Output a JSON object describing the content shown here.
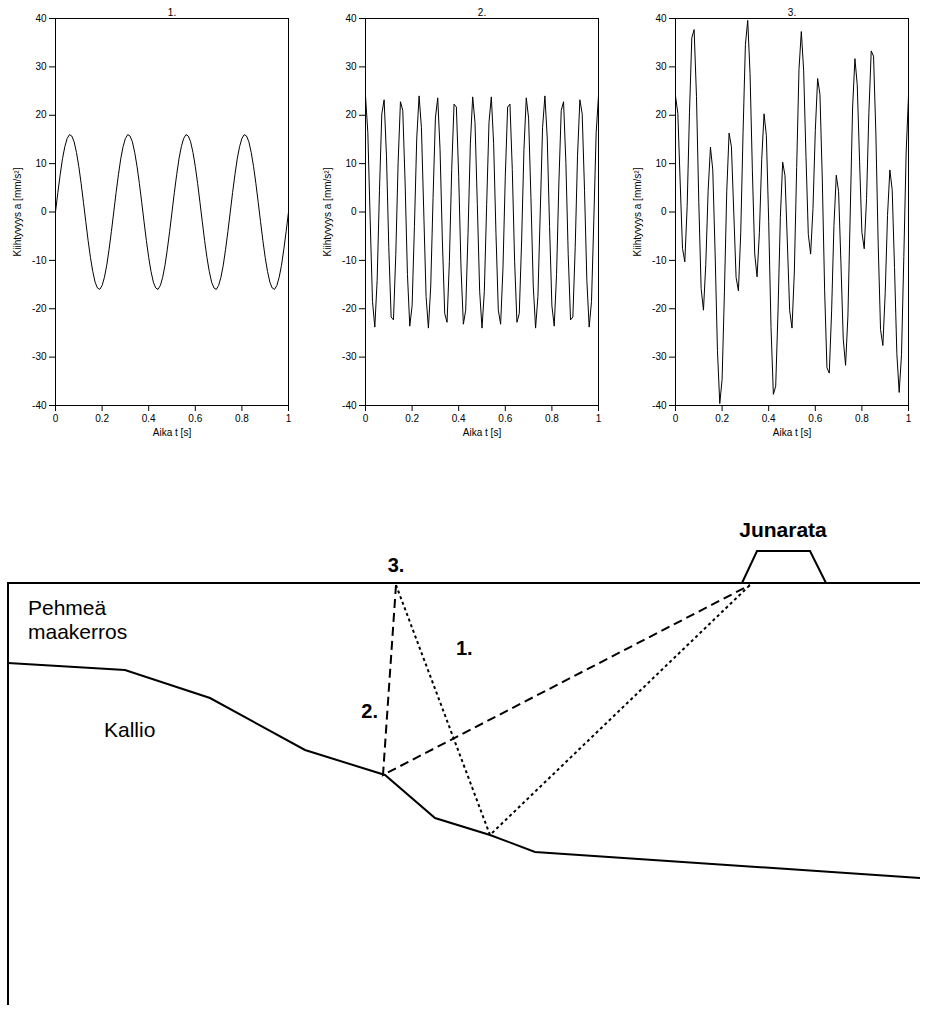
{
  "chart_data": [
    {
      "type": "line",
      "title": "1.",
      "x_label": "Aika t [s]",
      "y_label": "Kiihtyvyys a [mm/s²]",
      "color": "#000000",
      "grid": false,
      "xlim": [
        0,
        1
      ],
      "xticks": [
        0,
        0.2,
        0.4,
        0.6,
        0.8,
        1
      ],
      "ylim": [
        -40,
        40
      ],
      "yticks": [
        -40,
        -30,
        -20,
        -10,
        0,
        10,
        20,
        30,
        40
      ],
      "x": [
        0,
        0.01,
        0.02,
        0.03,
        0.04,
        0.05,
        0.06,
        0.07,
        0.08,
        0.09,
        0.1,
        0.11,
        0.12,
        0.13,
        0.14,
        0.15,
        0.16,
        0.17,
        0.18,
        0.19,
        0.2,
        0.21,
        0.22,
        0.23,
        0.24,
        0.25,
        0.26,
        0.27,
        0.28,
        0.29,
        0.3,
        0.31,
        0.32,
        0.33,
        0.34,
        0.35,
        0.36,
        0.37,
        0.38,
        0.39,
        0.4,
        0.41,
        0.42,
        0.43,
        0.44,
        0.45,
        0.46,
        0.47,
        0.48,
        0.49,
        0.5,
        0.51,
        0.52,
        0.53,
        0.54,
        0.55,
        0.56,
        0.57,
        0.58,
        0.59,
        0.6,
        0.61,
        0.62,
        0.63,
        0.64,
        0.65,
        0.66,
        0.67,
        0.68,
        0.69,
        0.7,
        0.71,
        0.72,
        0.73,
        0.74,
        0.75,
        0.76,
        0.77,
        0.78,
        0.79,
        0.8,
        0.81,
        0.82,
        0.83,
        0.84,
        0.85,
        0.86,
        0.87,
        0.88,
        0.89,
        0.9,
        0.91,
        0.92,
        0.93,
        0.94,
        0.95,
        0.96,
        0.97,
        0.98,
        0.99,
        1
      ],
      "values": [
        0,
        4.0,
        7.7,
        11.0,
        13.5,
        15.2,
        16.0,
        15.7,
        14.5,
        12.3,
        9.4,
        5.9,
        2.0,
        -2.0,
        -5.9,
        -9.4,
        -12.3,
        -14.5,
        -15.7,
        -16.0,
        -15.2,
        -13.5,
        -11.0,
        -7.7,
        -4.0,
        0,
        4.0,
        7.7,
        11.0,
        13.5,
        15.2,
        16.0,
        15.7,
        14.5,
        12.3,
        9.4,
        5.9,
        2.0,
        -2.0,
        -5.9,
        -9.4,
        -12.3,
        -14.5,
        -15.7,
        -16.0,
        -15.2,
        -13.5,
        -11.0,
        -7.7,
        -4.0,
        0,
        4.0,
        7.7,
        11.0,
        13.5,
        15.2,
        16.0,
        15.7,
        14.5,
        12.3,
        9.4,
        5.9,
        2.0,
        -2.0,
        -5.9,
        -9.4,
        -12.3,
        -14.5,
        -15.7,
        -16.0,
        -15.2,
        -13.5,
        -11.0,
        -7.7,
        -4.0,
        0,
        4.0,
        7.7,
        11.0,
        13.5,
        15.2,
        16.0,
        15.7,
        14.5,
        12.3,
        9.4,
        5.9,
        2.0,
        -2.0,
        -5.9,
        -9.4,
        -12.3,
        -14.5,
        -15.7,
        -16.0,
        -15.2,
        -13.5,
        -11.0,
        -7.7,
        -4.0,
        0
      ]
    },
    {
      "type": "line",
      "title": "2.",
      "x_label": "Aika t [s]",
      "y_label": "Kiihtyvyys a [mm/s²]",
      "color": "#000000",
      "grid": false,
      "xlim": [
        0,
        1
      ],
      "xticks": [
        0,
        0.2,
        0.4,
        0.6,
        0.8,
        1
      ],
      "ylim": [
        -40,
        40
      ],
      "yticks": [
        -40,
        -30,
        -20,
        -10,
        0,
        10,
        20,
        30,
        40
      ],
      "x": [
        0,
        0.01,
        0.02,
        0.03,
        0.04,
        0.05,
        0.06,
        0.07,
        0.08,
        0.09,
        0.1,
        0.11,
        0.12,
        0.13,
        0.14,
        0.15,
        0.16,
        0.17,
        0.18,
        0.19,
        0.2,
        0.21,
        0.22,
        0.23,
        0.24,
        0.25,
        0.26,
        0.27,
        0.28,
        0.29,
        0.3,
        0.31,
        0.32,
        0.33,
        0.34,
        0.35,
        0.36,
        0.37,
        0.38,
        0.39,
        0.4,
        0.41,
        0.42,
        0.43,
        0.44,
        0.45,
        0.46,
        0.47,
        0.48,
        0.49,
        0.5,
        0.51,
        0.52,
        0.53,
        0.54,
        0.55,
        0.56,
        0.57,
        0.58,
        0.59,
        0.6,
        0.61,
        0.62,
        0.63,
        0.64,
        0.65,
        0.66,
        0.67,
        0.68,
        0.69,
        0.7,
        0.71,
        0.72,
        0.73,
        0.74,
        0.75,
        0.76,
        0.77,
        0.78,
        0.79,
        0.8,
        0.81,
        0.82,
        0.83,
        0.84,
        0.85,
        0.86,
        0.87,
        0.88,
        0.89,
        0.9,
        0.91,
        0.92,
        0.93,
        0.94,
        0.95,
        0.96,
        0.97,
        0.98,
        0.99,
        1
      ],
      "values": [
        24.0,
        16.4,
        -1.5,
        -18.5,
        -23.8,
        -14.1,
        4.5,
        20.3,
        23.2,
        11.6,
        -7.4,
        -21.7,
        -22.3,
        -8.8,
        10.2,
        22.8,
        21.0,
        6.0,
        -12.9,
        -23.6,
        -19.4,
        -3.0,
        15.3,
        24.0,
        17.5,
        0.0,
        -17.5,
        -24.0,
        -15.3,
        3.0,
        19.4,
        23.6,
        12.9,
        -6.0,
        -21.0,
        -22.8,
        -10.2,
        8.8,
        22.3,
        21.7,
        7.4,
        -11.6,
        -23.2,
        -20.3,
        -4.5,
        14.1,
        23.8,
        18.5,
        1.5,
        -16.4,
        -24.0,
        -16.4,
        1.5,
        18.5,
        23.8,
        14.1,
        -4.5,
        -20.3,
        -23.2,
        -11.6,
        7.4,
        21.7,
        22.3,
        8.8,
        -10.2,
        -22.8,
        -21.0,
        -6.0,
        12.9,
        23.6,
        19.4,
        3.0,
        -15.3,
        -24.0,
        -17.5,
        0.0,
        17.5,
        24.0,
        15.3,
        -3.0,
        -19.4,
        -23.6,
        -12.9,
        6.0,
        21.0,
        22.8,
        10.2,
        -8.8,
        -22.3,
        -21.7,
        -7.4,
        11.6,
        23.2,
        20.3,
        4.5,
        -14.1,
        -23.8,
        -18.5,
        -1.5,
        16.4,
        24.0
      ]
    },
    {
      "type": "line",
      "title": "3.",
      "x_label": "Aika t [s]",
      "y_label": "Kiihtyvyys a [mm/s²]",
      "color": "#000000",
      "grid": false,
      "xlim": [
        0,
        1
      ],
      "xticks": [
        0,
        0.2,
        0.4,
        0.6,
        0.8,
        1
      ],
      "ylim": [
        -40,
        40
      ],
      "yticks": [
        -40,
        -30,
        -20,
        -10,
        0,
        10,
        20,
        30,
        40
      ],
      "x": [
        0,
        0.01,
        0.02,
        0.03,
        0.04,
        0.05,
        0.06,
        0.07,
        0.08,
        0.09,
        0.1,
        0.11,
        0.12,
        0.13,
        0.14,
        0.15,
        0.16,
        0.17,
        0.18,
        0.19,
        0.2,
        0.21,
        0.22,
        0.23,
        0.24,
        0.25,
        0.26,
        0.27,
        0.28,
        0.29,
        0.3,
        0.31,
        0.32,
        0.33,
        0.34,
        0.35,
        0.36,
        0.37,
        0.38,
        0.39,
        0.4,
        0.41,
        0.42,
        0.43,
        0.44,
        0.45,
        0.46,
        0.47,
        0.48,
        0.49,
        0.5,
        0.51,
        0.52,
        0.53,
        0.54,
        0.55,
        0.56,
        0.57,
        0.58,
        0.59,
        0.6,
        0.61,
        0.62,
        0.63,
        0.64,
        0.65,
        0.66,
        0.67,
        0.68,
        0.69,
        0.7,
        0.71,
        0.72,
        0.73,
        0.74,
        0.75,
        0.76,
        0.77,
        0.78,
        0.79,
        0.8,
        0.81,
        0.82,
        0.83,
        0.84,
        0.85,
        0.86,
        0.87,
        0.88,
        0.89,
        0.9,
        0.91,
        0.92,
        0.93,
        0.94,
        0.95,
        0.96,
        0.97,
        0.98,
        0.99,
        1
      ],
      "values": [
        24.0,
        20.4,
        6.2,
        -7.5,
        -10.3,
        1.1,
        20.5,
        36.0,
        37.7,
        23.9,
        2.0,
        -15.8,
        -20.3,
        -10.8,
        4.3,
        13.4,
        8.7,
        -8.5,
        -28.6,
        -39.6,
        -34.6,
        -16.5,
        4.3,
        16.3,
        13.5,
        0.0,
        -13.5,
        -16.3,
        -4.3,
        16.5,
        34.6,
        39.6,
        28.6,
        8.5,
        -8.7,
        -13.4,
        -4.3,
        10.8,
        20.3,
        15.8,
        -2.0,
        -23.9,
        -37.7,
        -36.0,
        -20.5,
        -1.1,
        10.3,
        7.5,
        -6.2,
        -20.4,
        -24.0,
        -12.4,
        9.2,
        29.5,
        37.3,
        29.3,
        11.5,
        -4.6,
        -8.7,
        0.7,
        16.8,
        27.6,
        24.3,
        6.8,
        -16.1,
        -32.2,
        -33.3,
        -20.5,
        -2.8,
        7.6,
        4.2,
        -10.5,
        -26.3,
        -31.7,
        -21.5,
        0.0,
        21.5,
        31.7,
        26.3,
        10.5,
        -4.2,
        -7.6,
        2.8,
        20.5,
        33.3,
        32.2,
        16.1,
        -6.8,
        -24.3,
        -27.6,
        -16.8,
        -0.7,
        8.7,
        4.6,
        -11.5,
        -29.3,
        -37.3,
        -29.5,
        -9.2,
        12.4,
        24.0
      ]
    }
  ],
  "diagram": {
    "track": "Junarata",
    "soil": "Pehmeä maakerros",
    "rock": "Kallio",
    "station": "3.",
    "path_1": "1.",
    "path_2": "2."
  }
}
